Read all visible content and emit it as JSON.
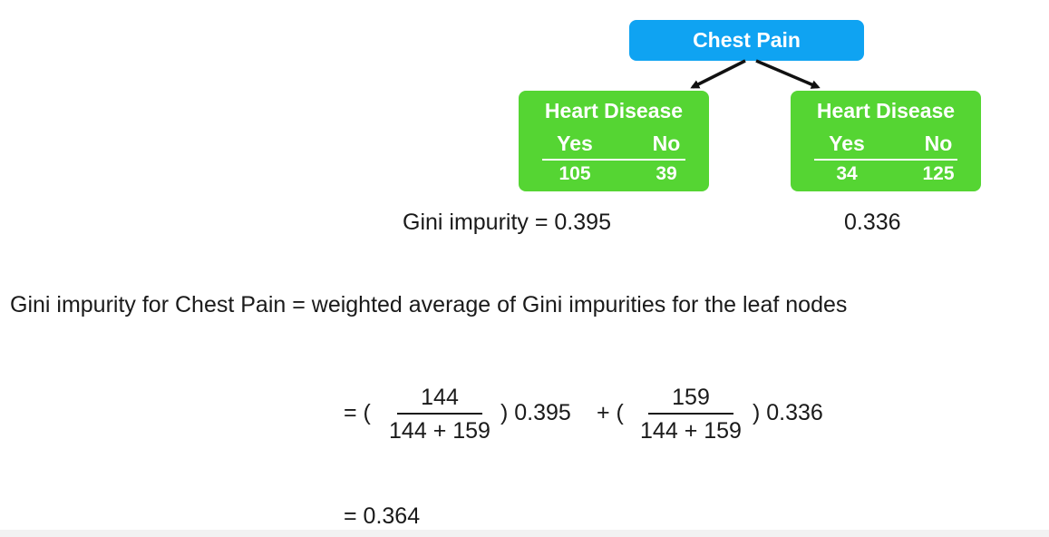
{
  "tree": {
    "root_label": "Chest Pain",
    "leaves": [
      {
        "title": "Heart Disease",
        "yes_label": "Yes",
        "no_label": "No",
        "yes_count": "105",
        "no_count": "39"
      },
      {
        "title": "Heart Disease",
        "yes_label": "Yes",
        "no_label": "No",
        "yes_count": "34",
        "no_count": "125"
      }
    ]
  },
  "gini": {
    "left_label": "Gini impurity = 0.395",
    "right_label": "0.336"
  },
  "definition": "Gini impurity for Chest Pain = weighted average of Gini impurities for the leaf nodes",
  "formula": {
    "equals_open_1": "= (",
    "frac1_num": "144",
    "frac1_den": "144 + 159",
    "close_term_1": ") 0.395",
    "plus_open_2": "+ (",
    "frac2_num": "159",
    "frac2_den": "144 + 159",
    "close_term_2": ") 0.336"
  },
  "result": "= 0.364",
  "colors": {
    "root": "#0fa3f2",
    "leaf": "#55d533",
    "text": "#1a1a1a"
  }
}
